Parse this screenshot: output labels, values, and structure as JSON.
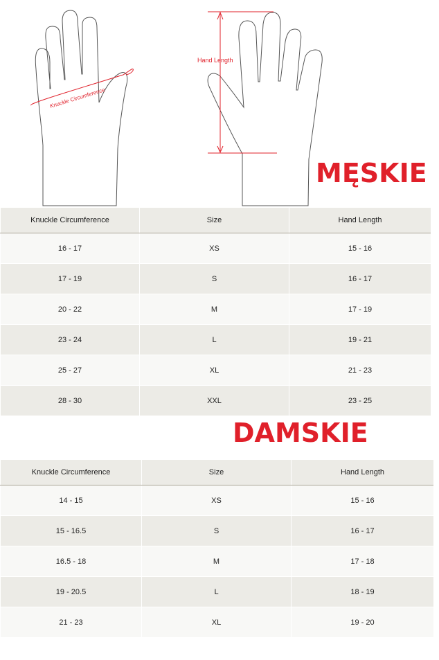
{
  "diagram": {
    "knuckle_label": "Knuckle Circumference",
    "length_label": "Hand Length",
    "accent_color": "#e0202a"
  },
  "mens": {
    "title": "MĘSKIE",
    "headers": [
      "Knuckle Circumference",
      "Size",
      "Hand Length"
    ],
    "rows": [
      [
        "16 - 17",
        "XS",
        "15 - 16"
      ],
      [
        "17 - 19",
        "S",
        "16 - 17"
      ],
      [
        "20 - 22",
        "M",
        "17 - 19"
      ],
      [
        "23 - 24",
        "L",
        "19 - 21"
      ],
      [
        "25 - 27",
        "XL",
        "21 - 23"
      ],
      [
        "28 - 30",
        "XXL",
        "23 - 25"
      ]
    ]
  },
  "womens": {
    "title": "DAMSKIE",
    "headers": [
      "Knuckle Circumference",
      "Size",
      "Hand Length"
    ],
    "rows": [
      [
        "14 - 15",
        "XS",
        "15 - 16"
      ],
      [
        "15 - 16.5",
        "S",
        "16 - 17"
      ],
      [
        "16.5 - 18",
        "M",
        "17 - 18"
      ],
      [
        "19 - 20.5",
        "L",
        "18 - 19"
      ],
      [
        "21 - 23",
        "XL",
        "19 - 20"
      ]
    ]
  }
}
